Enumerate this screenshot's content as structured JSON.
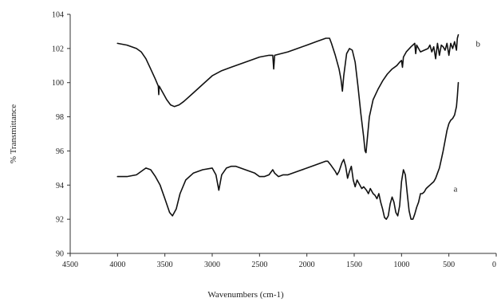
{
  "chart_data": {
    "type": "line",
    "title": "",
    "xlabel": "Wavenumbers (cm-1)",
    "ylabel": "% Transmittance",
    "xlim": [
      4500,
      0
    ],
    "ylim": [
      90,
      104
    ],
    "x_reversed": true,
    "x_ticks": [
      4500,
      4000,
      3500,
      3000,
      2500,
      2000,
      1500,
      1000,
      500,
      0
    ],
    "y_ticks": [
      90,
      92,
      94,
      96,
      98,
      100,
      102,
      104
    ],
    "grid": false,
    "legend": "none",
    "line_color": "#111111",
    "series": [
      {
        "name": "b",
        "points": [
          [
            4000,
            102.3
          ],
          [
            3900,
            102.2
          ],
          [
            3800,
            102.0
          ],
          [
            3750,
            101.8
          ],
          [
            3700,
            101.4
          ],
          [
            3650,
            100.8
          ],
          [
            3600,
            100.2
          ],
          [
            3570,
            99.8
          ],
          [
            3565,
            99.3
          ],
          [
            3560,
            99.8
          ],
          [
            3520,
            99.4
          ],
          [
            3480,
            99.0
          ],
          [
            3440,
            98.7
          ],
          [
            3400,
            98.6
          ],
          [
            3350,
            98.7
          ],
          [
            3300,
            98.9
          ],
          [
            3200,
            99.4
          ],
          [
            3100,
            99.9
          ],
          [
            3000,
            100.4
          ],
          [
            2900,
            100.7
          ],
          [
            2800,
            100.9
          ],
          [
            2700,
            101.1
          ],
          [
            2600,
            101.3
          ],
          [
            2500,
            101.5
          ],
          [
            2400,
            101.6
          ],
          [
            2360,
            101.6
          ],
          [
            2350,
            100.8
          ],
          [
            2340,
            101.6
          ],
          [
            2200,
            101.8
          ],
          [
            2100,
            102.0
          ],
          [
            2000,
            102.2
          ],
          [
            1900,
            102.4
          ],
          [
            1800,
            102.6
          ],
          [
            1760,
            102.6
          ],
          [
            1740,
            102.3
          ],
          [
            1700,
            101.6
          ],
          [
            1660,
            100.8
          ],
          [
            1640,
            100.2
          ],
          [
            1625,
            99.5
          ],
          [
            1610,
            100.4
          ],
          [
            1580,
            101.7
          ],
          [
            1550,
            102.0
          ],
          [
            1520,
            101.9
          ],
          [
            1490,
            101.2
          ],
          [
            1460,
            99.8
          ],
          [
            1430,
            98.2
          ],
          [
            1400,
            96.8
          ],
          [
            1385,
            96.0
          ],
          [
            1375,
            95.9
          ],
          [
            1360,
            96.8
          ],
          [
            1340,
            98.0
          ],
          [
            1300,
            99.0
          ],
          [
            1250,
            99.6
          ],
          [
            1200,
            100.1
          ],
          [
            1150,
            100.5
          ],
          [
            1100,
            100.8
          ],
          [
            1050,
            101.0
          ],
          [
            1020,
            101.2
          ],
          [
            1000,
            101.3
          ],
          [
            990,
            100.9
          ],
          [
            980,
            101.5
          ],
          [
            950,
            101.8
          ],
          [
            900,
            102.1
          ],
          [
            860,
            102.3
          ],
          [
            850,
            101.7
          ],
          [
            840,
            102.2
          ],
          [
            800,
            101.8
          ],
          [
            760,
            101.9
          ],
          [
            720,
            102.0
          ],
          [
            700,
            102.2
          ],
          [
            680,
            101.8
          ],
          [
            660,
            102.1
          ],
          [
            640,
            101.4
          ],
          [
            620,
            102.3
          ],
          [
            600,
            101.6
          ],
          [
            580,
            102.2
          ],
          [
            560,
            102.1
          ],
          [
            540,
            101.9
          ],
          [
            520,
            102.3
          ],
          [
            500,
            101.6
          ],
          [
            480,
            102.3
          ],
          [
            460,
            102.0
          ],
          [
            440,
            102.4
          ],
          [
            420,
            101.9
          ],
          [
            410,
            102.6
          ],
          [
            400,
            102.8
          ]
        ]
      },
      {
        "name": "a",
        "points": [
          [
            4000,
            94.5
          ],
          [
            3900,
            94.5
          ],
          [
            3800,
            94.6
          ],
          [
            3750,
            94.8
          ],
          [
            3700,
            95.0
          ],
          [
            3650,
            94.9
          ],
          [
            3600,
            94.5
          ],
          [
            3550,
            94.0
          ],
          [
            3500,
            93.2
          ],
          [
            3450,
            92.4
          ],
          [
            3420,
            92.2
          ],
          [
            3380,
            92.6
          ],
          [
            3340,
            93.5
          ],
          [
            3280,
            94.3
          ],
          [
            3200,
            94.7
          ],
          [
            3100,
            94.9
          ],
          [
            3000,
            95.0
          ],
          [
            2960,
            94.6
          ],
          [
            2930,
            93.7
          ],
          [
            2900,
            94.6
          ],
          [
            2850,
            95.0
          ],
          [
            2800,
            95.1
          ],
          [
            2750,
            95.1
          ],
          [
            2700,
            95.0
          ],
          [
            2650,
            94.9
          ],
          [
            2600,
            94.8
          ],
          [
            2550,
            94.7
          ],
          [
            2500,
            94.5
          ],
          [
            2450,
            94.5
          ],
          [
            2400,
            94.6
          ],
          [
            2360,
            94.9
          ],
          [
            2340,
            94.7
          ],
          [
            2300,
            94.5
          ],
          [
            2250,
            94.6
          ],
          [
            2200,
            94.6
          ],
          [
            2100,
            94.8
          ],
          [
            2000,
            95.0
          ],
          [
            1900,
            95.2
          ],
          [
            1800,
            95.4
          ],
          [
            1780,
            95.4
          ],
          [
            1750,
            95.2
          ],
          [
            1700,
            94.8
          ],
          [
            1680,
            94.6
          ],
          [
            1660,
            94.8
          ],
          [
            1630,
            95.3
          ],
          [
            1610,
            95.5
          ],
          [
            1590,
            95.1
          ],
          [
            1570,
            94.4
          ],
          [
            1550,
            94.8
          ],
          [
            1530,
            95.1
          ],
          [
            1510,
            94.3
          ],
          [
            1490,
            93.9
          ],
          [
            1470,
            94.3
          ],
          [
            1450,
            94.1
          ],
          [
            1420,
            93.8
          ],
          [
            1400,
            93.9
          ],
          [
            1370,
            93.7
          ],
          [
            1350,
            93.5
          ],
          [
            1330,
            93.8
          ],
          [
            1300,
            93.5
          ],
          [
            1280,
            93.4
          ],
          [
            1260,
            93.2
          ],
          [
            1240,
            93.5
          ],
          [
            1220,
            93.0
          ],
          [
            1200,
            92.6
          ],
          [
            1180,
            92.1
          ],
          [
            1160,
            92.0
          ],
          [
            1140,
            92.2
          ],
          [
            1120,
            92.9
          ],
          [
            1100,
            93.3
          ],
          [
            1080,
            93.0
          ],
          [
            1060,
            92.4
          ],
          [
            1040,
            92.2
          ],
          [
            1020,
            92.8
          ],
          [
            1000,
            94.2
          ],
          [
            980,
            94.9
          ],
          [
            960,
            94.6
          ],
          [
            940,
            93.5
          ],
          [
            920,
            92.5
          ],
          [
            900,
            92.0
          ],
          [
            880,
            92.0
          ],
          [
            860,
            92.3
          ],
          [
            840,
            92.7
          ],
          [
            820,
            93.0
          ],
          [
            800,
            93.5
          ],
          [
            780,
            93.5
          ],
          [
            760,
            93.6
          ],
          [
            740,
            93.8
          ],
          [
            720,
            93.9
          ],
          [
            700,
            94.0
          ],
          [
            680,
            94.1
          ],
          [
            660,
            94.2
          ],
          [
            640,
            94.4
          ],
          [
            620,
            94.7
          ],
          [
            600,
            95.0
          ],
          [
            580,
            95.5
          ],
          [
            560,
            96.0
          ],
          [
            540,
            96.6
          ],
          [
            520,
            97.2
          ],
          [
            500,
            97.6
          ],
          [
            480,
            97.8
          ],
          [
            460,
            97.9
          ],
          [
            440,
            98.1
          ],
          [
            420,
            98.6
          ],
          [
            410,
            99.2
          ],
          [
            400,
            100.0
          ]
        ]
      }
    ]
  }
}
